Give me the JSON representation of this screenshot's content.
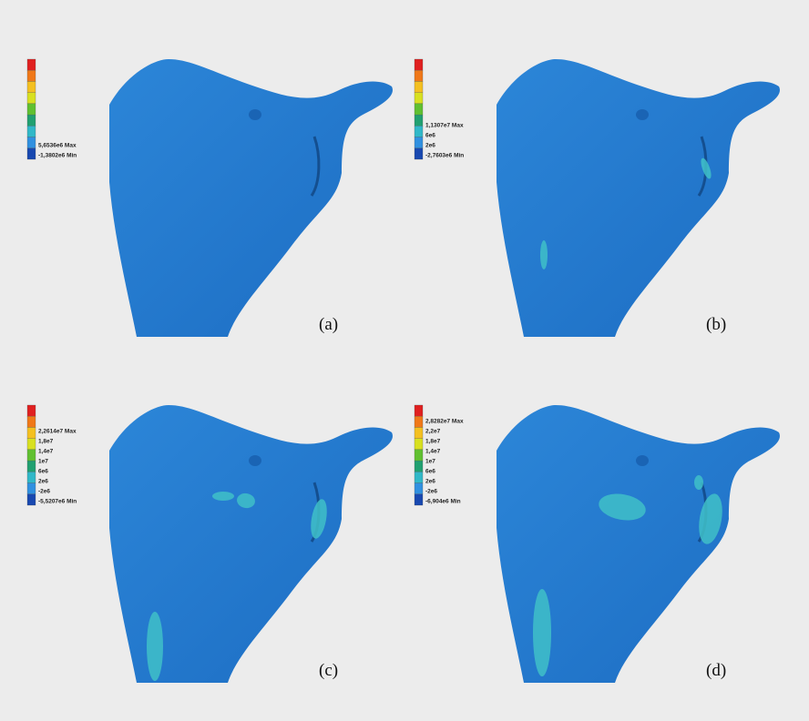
{
  "panels": [
    {
      "label": "(a)",
      "legend": [
        "5,6536e6 Max",
        "-1,3802e6 Min"
      ]
    },
    {
      "label": "(b)",
      "legend": [
        "1,1307e7 Max",
        "6e6",
        "2e6",
        "-2,7603e6 Min"
      ]
    },
    {
      "label": "(c)",
      "legend": [
        "2,2614e7 Max",
        "1,8e7",
        "1,4e7",
        "1e7",
        "6e6",
        "2e6",
        "-2e6",
        "-5,5207e6 Min"
      ]
    },
    {
      "label": "(d)",
      "legend": [
        "2,8282e7 Max",
        "2,2e7",
        "1,8e7",
        "1,4e7",
        "1e7",
        "6e6",
        "2e6",
        "-2e6",
        "-6,904e6 Min"
      ]
    }
  ]
}
